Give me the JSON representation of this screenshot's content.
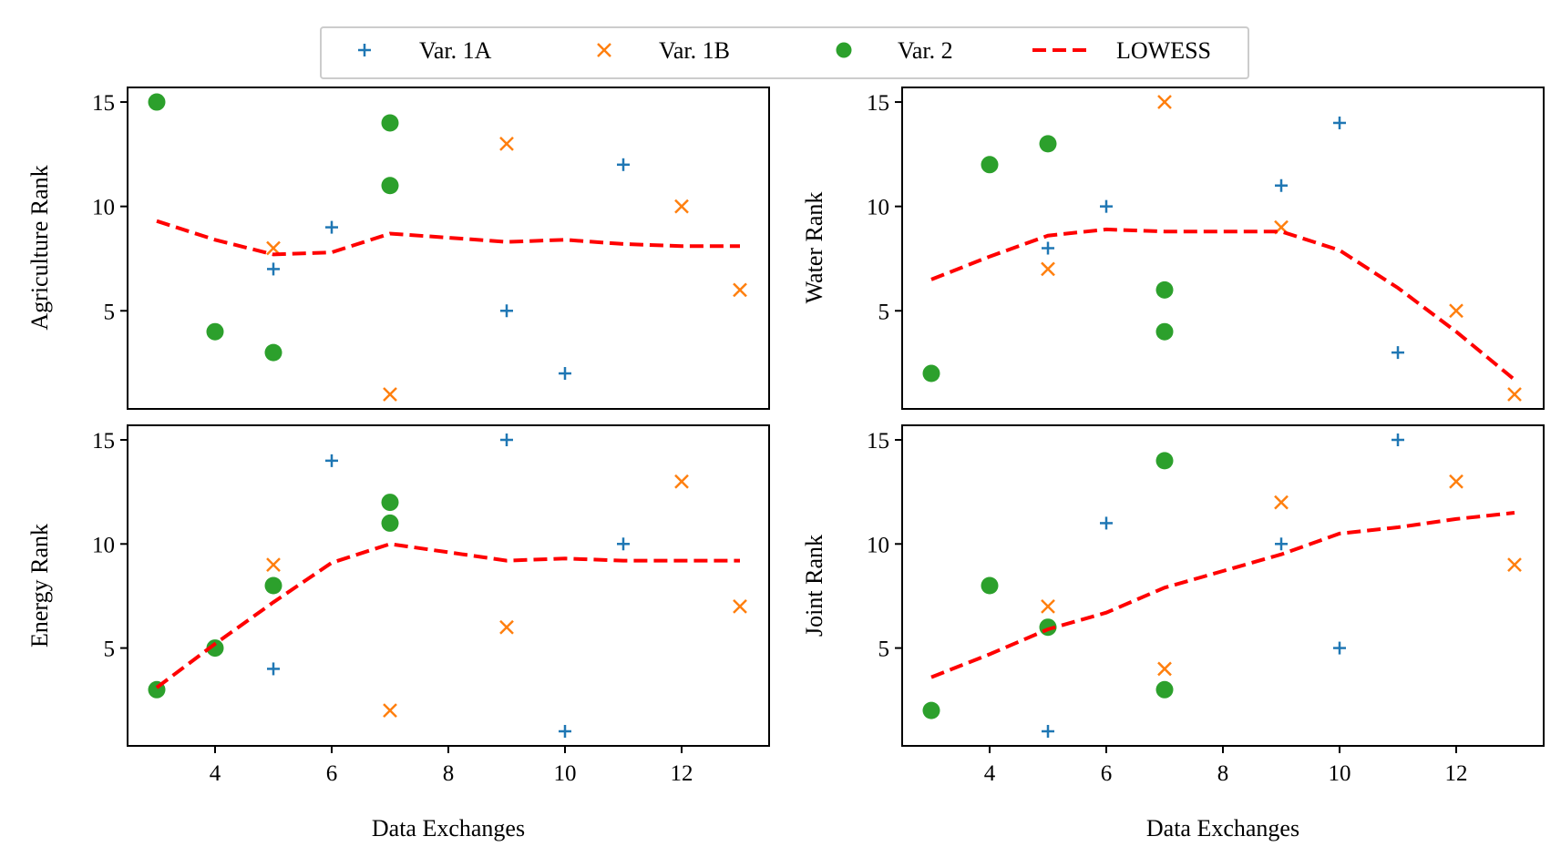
{
  "legend": {
    "placement": "top-center",
    "items": [
      {
        "label": "Var. 1A",
        "marker": "plus",
        "color": "#1f77b4"
      },
      {
        "label": "Var. 1B",
        "marker": "x",
        "color": "#ff7f0e"
      },
      {
        "label": "Var. 2",
        "marker": "circle",
        "color": "#2ca02c"
      },
      {
        "label": "LOWESS",
        "marker": "dashed-line",
        "color": "#ff0000"
      }
    ]
  },
  "chart_data": [
    {
      "type": "scatter",
      "title": "",
      "xlabel": "",
      "ylabel": "Agriculture Rank",
      "xlim": [
        2.5,
        13.5
      ],
      "ylim": [
        0.3,
        15.7
      ],
      "xticks": [],
      "yticks": [
        5,
        10,
        15
      ],
      "series": [
        {
          "name": "Var. 1A",
          "points": [
            [
              5,
              7
            ],
            [
              6,
              9
            ],
            [
              9,
              5
            ],
            [
              10,
              2
            ],
            [
              11,
              12
            ]
          ]
        },
        {
          "name": "Var. 1B",
          "points": [
            [
              5,
              8
            ],
            [
              7,
              1
            ],
            [
              9,
              13
            ],
            [
              12,
              10
            ],
            [
              13,
              6
            ]
          ]
        },
        {
          "name": "Var. 2",
          "points": [
            [
              3,
              15
            ],
            [
              4,
              4
            ],
            [
              5,
              3
            ],
            [
              7,
              14
            ],
            [
              7,
              11
            ]
          ]
        },
        {
          "name": "LOWESS",
          "points": [
            [
              3,
              9.3
            ],
            [
              4,
              8.4
            ],
            [
              5,
              7.7
            ],
            [
              6,
              7.8
            ],
            [
              7,
              8.7
            ],
            [
              8,
              8.5
            ],
            [
              9,
              8.3
            ],
            [
              10,
              8.4
            ],
            [
              11,
              8.2
            ],
            [
              12,
              8.1
            ],
            [
              13,
              8.1
            ]
          ]
        }
      ]
    },
    {
      "type": "scatter",
      "title": "",
      "xlabel": "",
      "ylabel": "Water Rank",
      "xlim": [
        2.5,
        13.5
      ],
      "ylim": [
        0.3,
        15.7
      ],
      "xticks": [],
      "yticks": [
        5,
        10,
        15
      ],
      "series": [
        {
          "name": "Var. 1A",
          "points": [
            [
              5,
              8
            ],
            [
              6,
              10
            ],
            [
              9,
              11
            ],
            [
              10,
              14
            ],
            [
              11,
              3
            ]
          ]
        },
        {
          "name": "Var. 1B",
          "points": [
            [
              5,
              7
            ],
            [
              7,
              15
            ],
            [
              9,
              9
            ],
            [
              12,
              5
            ],
            [
              13,
              1
            ]
          ]
        },
        {
          "name": "Var. 2",
          "points": [
            [
              3,
              2
            ],
            [
              4,
              12
            ],
            [
              5,
              13
            ],
            [
              7,
              6
            ],
            [
              7,
              4
            ]
          ]
        },
        {
          "name": "LOWESS",
          "points": [
            [
              3,
              6.5
            ],
            [
              4,
              7.6
            ],
            [
              5,
              8.6
            ],
            [
              6,
              8.9
            ],
            [
              7,
              8.8
            ],
            [
              8,
              8.8
            ],
            [
              9,
              8.8
            ],
            [
              10,
              7.9
            ],
            [
              11,
              6.1
            ],
            [
              12,
              4.0
            ],
            [
              13,
              1.7
            ]
          ]
        }
      ]
    },
    {
      "type": "scatter",
      "title": "",
      "xlabel": "Data Exchanges",
      "ylabel": "Energy Rank",
      "xlim": [
        2.5,
        13.5
      ],
      "ylim": [
        0.3,
        15.7
      ],
      "xticks": [
        4,
        6,
        8,
        10,
        12
      ],
      "yticks": [
        5,
        10,
        15
      ],
      "series": [
        {
          "name": "Var. 1A",
          "points": [
            [
              5,
              4
            ],
            [
              6,
              14
            ],
            [
              9,
              15
            ],
            [
              10,
              1
            ],
            [
              11,
              10
            ]
          ]
        },
        {
          "name": "Var. 1B",
          "points": [
            [
              5,
              9
            ],
            [
              7,
              2
            ],
            [
              9,
              6
            ],
            [
              12,
              13
            ],
            [
              13,
              7
            ]
          ]
        },
        {
          "name": "Var. 2",
          "points": [
            [
              3,
              3
            ],
            [
              4,
              5
            ],
            [
              5,
              8
            ],
            [
              7,
              12
            ],
            [
              7,
              11
            ]
          ]
        },
        {
          "name": "LOWESS",
          "points": [
            [
              3,
              3.1
            ],
            [
              4,
              5.2
            ],
            [
              5,
              7.2
            ],
            [
              6,
              9.1
            ],
            [
              7,
              10.0
            ],
            [
              8,
              9.6
            ],
            [
              9,
              9.2
            ],
            [
              10,
              9.3
            ],
            [
              11,
              9.2
            ],
            [
              12,
              9.2
            ],
            [
              13,
              9.2
            ]
          ]
        }
      ]
    },
    {
      "type": "scatter",
      "title": "",
      "xlabel": "Data Exchanges",
      "ylabel": "Joint Rank",
      "xlim": [
        2.5,
        13.5
      ],
      "ylim": [
        0.3,
        15.7
      ],
      "xticks": [
        4,
        6,
        8,
        10,
        12
      ],
      "yticks": [
        5,
        10,
        15
      ],
      "series": [
        {
          "name": "Var. 1A",
          "points": [
            [
              5,
              1
            ],
            [
              6,
              11
            ],
            [
              9,
              10
            ],
            [
              10,
              5
            ],
            [
              11,
              15
            ]
          ]
        },
        {
          "name": "Var. 1B",
          "points": [
            [
              5,
              7
            ],
            [
              7,
              4
            ],
            [
              9,
              12
            ],
            [
              12,
              13
            ],
            [
              13,
              9
            ]
          ]
        },
        {
          "name": "Var. 2",
          "points": [
            [
              3,
              2
            ],
            [
              4,
              8
            ],
            [
              5,
              6
            ],
            [
              7,
              14
            ],
            [
              7,
              3
            ]
          ]
        },
        {
          "name": "LOWESS",
          "points": [
            [
              3,
              3.6
            ],
            [
              4,
              4.7
            ],
            [
              5,
              5.9
            ],
            [
              6,
              6.7
            ],
            [
              7,
              7.9
            ],
            [
              8,
              8.7
            ],
            [
              9,
              9.5
            ],
            [
              10,
              10.5
            ],
            [
              11,
              10.8
            ],
            [
              12,
              11.2
            ],
            [
              13,
              11.5
            ]
          ]
        }
      ]
    }
  ]
}
